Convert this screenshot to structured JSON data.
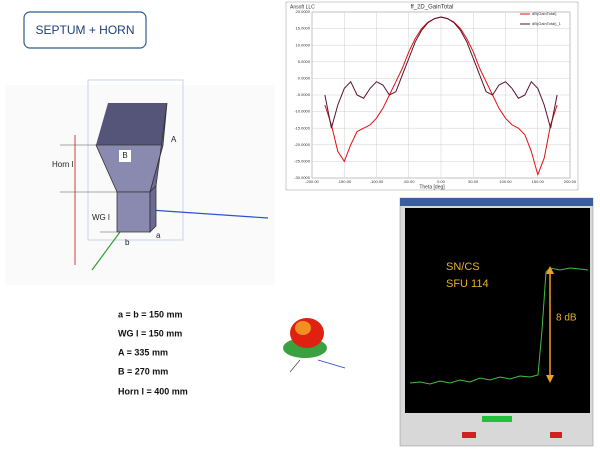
{
  "header": {
    "title": "SEPTUM + HORN"
  },
  "horn_diagram": {
    "labels": [
      "A",
      "B",
      "Horn l",
      "WG l",
      "b",
      "a"
    ]
  },
  "dimensions": [
    "a = b = 150 mm",
    "WG l = 150 mm",
    "A = 335 mm",
    "B = 270 mm",
    "Horn l = 400 mm"
  ],
  "analyzer": {
    "labels": [
      "SN/CS",
      "SFU 114"
    ],
    "step_label": "8 dB"
  },
  "chart_data": {
    "type": "line",
    "title": "ff_2D_GainTotal",
    "subtitle": "Ansoft LLC",
    "x_label": "Theta [deg]",
    "x": [
      -180,
      -170,
      -160,
      -150,
      -140,
      -130,
      -120,
      -110,
      -100,
      -90,
      -80,
      -70,
      -60,
      -50,
      -40,
      -30,
      -20,
      -10,
      0,
      10,
      20,
      30,
      40,
      50,
      60,
      70,
      80,
      90,
      100,
      110,
      120,
      130,
      140,
      150,
      160,
      170,
      180
    ],
    "series": [
      {
        "name": "dB(GainTotal)",
        "color": "#e01010",
        "values": [
          -8,
          -14,
          -22,
          -25,
          -20,
          -16,
          -15,
          -14,
          -12,
          -9,
          -5,
          -1,
          3,
          8,
          12,
          15,
          17,
          18,
          18.5,
          18,
          17,
          15,
          12,
          8,
          3,
          -1,
          -5,
          -9,
          -12,
          -14,
          -15,
          -17,
          -22,
          -29,
          -24,
          -14,
          -8
        ]
      },
      {
        "name": "dB(GainTotal)_1",
        "color": "#5a1030",
        "values": [
          -5,
          -15,
          -8,
          -3,
          -1,
          -5,
          -6,
          -3,
          -1,
          -2,
          -5,
          -4,
          1,
          6,
          11,
          14.5,
          16.8,
          18,
          18.5,
          18,
          16.8,
          14.5,
          11,
          6,
          1,
          -4,
          -5,
          -2,
          -1,
          -3,
          -6,
          -5,
          -1,
          -3,
          -8,
          -15,
          -5
        ]
      }
    ],
    "xlim": [
      -200,
      200
    ],
    "xticks": [
      {
        "value": -200,
        "label": "-200.00"
      },
      {
        "value": -150,
        "label": "-150.00"
      },
      {
        "value": -100,
        "label": "-100.00"
      },
      {
        "value": -50,
        "label": "-50.00"
      },
      {
        "value": 0,
        "label": "0.00"
      },
      {
        "value": 50,
        "label": "50.00"
      },
      {
        "value": 100,
        "label": "100.00"
      },
      {
        "value": 150,
        "label": "150.00"
      },
      {
        "value": 200,
        "label": "200.00"
      }
    ],
    "ylim": [
      -30,
      20
    ],
    "yticks": [
      {
        "value": -30,
        "label": "-30.0000"
      },
      {
        "value": -25,
        "label": "-25.0000"
      },
      {
        "value": -20,
        "label": "-20.0000"
      },
      {
        "value": -15,
        "label": "-15.0000"
      },
      {
        "value": -10,
        "label": "-10.0000"
      },
      {
        "value": -5,
        "label": "-5.0000"
      },
      {
        "value": 0,
        "label": "0.0000"
      },
      {
        "value": 5,
        "label": "5.0000"
      },
      {
        "value": 10,
        "label": "10.0000"
      },
      {
        "value": 15,
        "label": "15.0000"
      },
      {
        "value": 20,
        "label": "20.0000"
      }
    ],
    "grid": true
  }
}
